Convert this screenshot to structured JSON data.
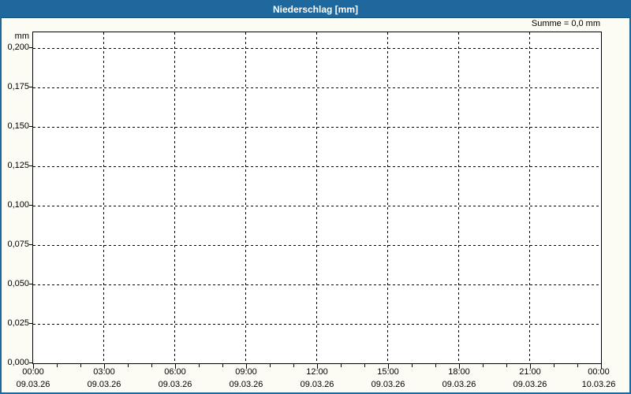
{
  "window": {
    "title": "Niederschlag [mm]"
  },
  "annotation": {
    "summe_label": "Summe = 0,0 mm"
  },
  "axes": {
    "y_unit": "mm",
    "y_tick_labels": [
      "0,200",
      "0,175",
      "0,150",
      "0,125",
      "0,100",
      "0,075",
      "0,050",
      "0,025",
      "0,000"
    ],
    "x_ticks": [
      {
        "time": "00:00",
        "date": "09.03.26"
      },
      {
        "time": "03:00",
        "date": "09.03.26"
      },
      {
        "time": "06:00",
        "date": "09.03.26"
      },
      {
        "time": "09:00",
        "date": "09.03.26"
      },
      {
        "time": "12:00",
        "date": "09.03.26"
      },
      {
        "time": "15:00",
        "date": "09.03.26"
      },
      {
        "time": "18:00",
        "date": "09.03.26"
      },
      {
        "time": "21:00",
        "date": "09.03.26"
      },
      {
        "time": "00:00",
        "date": "10.03.26"
      }
    ]
  },
  "chart_data": {
    "type": "line",
    "title": "Niederschlag [mm]",
    "ylabel": "mm",
    "ylim": [
      0,
      0.2
    ],
    "y_tick_step": 0.025,
    "x": [
      "00:00",
      "03:00",
      "06:00",
      "09:00",
      "12:00",
      "15:00",
      "18:00",
      "21:00",
      "00:00"
    ],
    "x_dates": [
      "09.03.26",
      "09.03.26",
      "09.03.26",
      "09.03.26",
      "09.03.26",
      "09.03.26",
      "09.03.26",
      "09.03.26",
      "10.03.26"
    ],
    "series": [
      {
        "name": "Niederschlag",
        "values": []
      }
    ],
    "sum": "Summe = 0,0 mm",
    "grid": true,
    "legend_position": "none"
  },
  "colors": {
    "titlebar": "#1E689E",
    "frame_border": "#1E689E",
    "grid": "#000000",
    "plot_bg": "#FFFFFF",
    "page_bg": "#FCFCF4",
    "title_text": "#FFFFFF",
    "axis_text": "#000000"
  }
}
